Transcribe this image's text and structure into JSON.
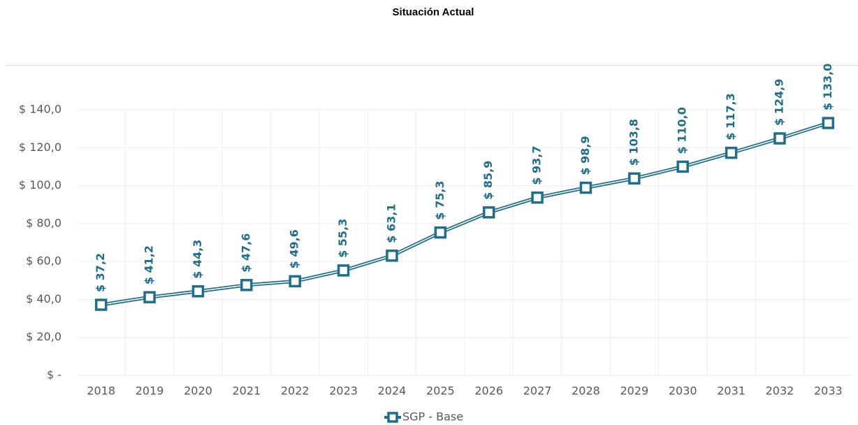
{
  "chart_data": {
    "type": "line",
    "title": "Situación Actual",
    "categories": [
      "2018",
      "2019",
      "2020",
      "2021",
      "2022",
      "2023",
      "2024",
      "2025",
      "2026",
      "2027",
      "2028",
      "2029",
      "2030",
      "2031",
      "2032",
      "2033"
    ],
    "series": [
      {
        "name": "SGP - Base",
        "color": "#1f6e8c",
        "values": [
          37.2,
          41.2,
          44.3,
          47.6,
          49.6,
          55.3,
          63.1,
          75.3,
          85.9,
          93.7,
          98.9,
          103.8,
          110.0,
          117.3,
          124.9,
          133.0
        ],
        "value_labels": [
          "$ 37,2",
          "$ 41,2",
          "$ 44,3",
          "$ 47,6",
          "$ 49,6",
          "$ 55,3",
          "$ 63,1",
          "$ 75,3",
          "$ 85,9",
          "$ 93,7",
          "$ 98,9",
          "$ 103,8",
          "$ 110,0",
          "$ 117,3",
          "$ 124,9",
          "$ 133,0"
        ]
      }
    ],
    "ylim": [
      0,
      140
    ],
    "yticks": [
      {
        "value": 0,
        "label": "$ -"
      },
      {
        "value": 20,
        "label": "$ 20,0"
      },
      {
        "value": 40,
        "label": "$ 40,0"
      },
      {
        "value": 60,
        "label": "$ 60,0"
      },
      {
        "value": 80,
        "label": "$ 80,0"
      },
      {
        "value": 100,
        "label": "$ 100,0"
      },
      {
        "value": 120,
        "label": "$ 120,0"
      },
      {
        "value": 140,
        "label": "$ 140,0"
      }
    ],
    "grid": true,
    "legend": "bottom"
  }
}
